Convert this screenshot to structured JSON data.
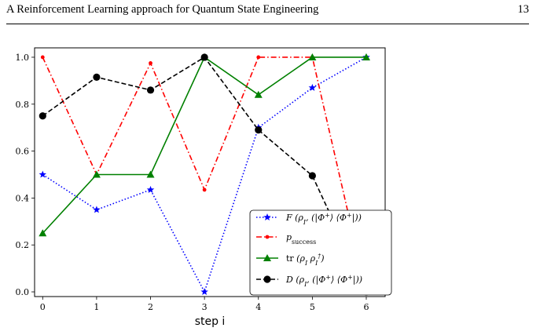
{
  "header": {
    "title": "A Reinforcement Learning approach for Quantum State Engineering",
    "page_number": "13"
  },
  "chart_data": {
    "type": "line",
    "x": [
      0,
      1,
      2,
      3,
      4,
      5,
      6
    ],
    "xlabel": "step i",
    "xlim": [
      -0.15,
      6.35
    ],
    "ylim": [
      -0.02,
      1.04
    ],
    "xticks": [
      "0",
      "1",
      "2",
      "3",
      "4",
      "5",
      "6"
    ],
    "yticks": [
      "0.0",
      "0.2",
      "0.4",
      "0.6",
      "0.8",
      "1.0"
    ],
    "grid": false,
    "legend_position": "lower-right",
    "series": [
      {
        "name": "F (ρ_I, (|Φ⁺⟩⟨Φ⁺|))",
        "color": "#0000ff",
        "linestyle": "dotted",
        "marker": "star",
        "values": [
          0.5,
          0.35,
          0.435,
          0.0,
          0.7,
          0.87,
          1.0
        ]
      },
      {
        "name": "p_success",
        "color": "#ff0000",
        "linestyle": "dashdot",
        "marker": "point",
        "values": [
          1.0,
          0.5,
          0.975,
          0.435,
          1.0,
          1.0,
          0.0
        ]
      },
      {
        "name": "tr(ρ_I ρ_I†)",
        "color": "#008000",
        "linestyle": "solid",
        "marker": "triangle",
        "values": [
          0.25,
          0.5,
          0.5,
          1.0,
          0.84,
          1.0,
          1.0
        ]
      },
      {
        "name": "D (ρ_I, (|Φ⁺⟩⟨Φ⁺|))",
        "color": "#000000",
        "linestyle": "dashed",
        "marker": "circle",
        "values": [
          0.75,
          0.915,
          0.86,
          1.0,
          0.69,
          0.495,
          0.0
        ]
      }
    ]
  }
}
